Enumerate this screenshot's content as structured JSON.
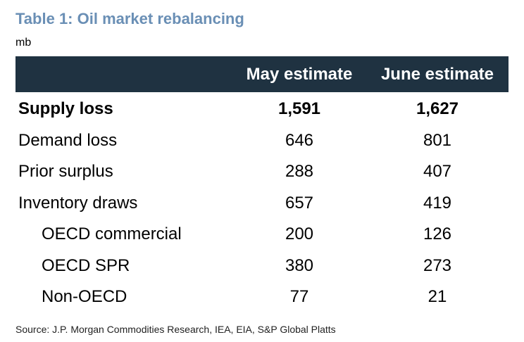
{
  "title": "Table 1: Oil market rebalancing",
  "unit": "mb",
  "table": {
    "headers": [
      "",
      "May estimate",
      "June estimate"
    ],
    "rows": [
      {
        "label": "Supply loss",
        "may": "1,591",
        "june": "1,627"
      },
      {
        "label": "Demand loss",
        "may": "646",
        "june": "801"
      },
      {
        "label": "Prior surplus",
        "may": "288",
        "june": "407"
      },
      {
        "label": "Inventory draws",
        "may": "657",
        "june": "419"
      },
      {
        "label": "OECD commercial",
        "may": "200",
        "june": "126"
      },
      {
        "label": "OECD SPR",
        "may": "380",
        "june": "273"
      },
      {
        "label": "Non-OECD",
        "may": "77",
        "june": "21"
      }
    ]
  },
  "source": "Source: J.P. Morgan Commodities Research, IEA, EIA, S&P Global Platts",
  "colors": {
    "title": "#6a8fb5",
    "header_bg": "#1f3241",
    "header_text": "#ffffff"
  }
}
